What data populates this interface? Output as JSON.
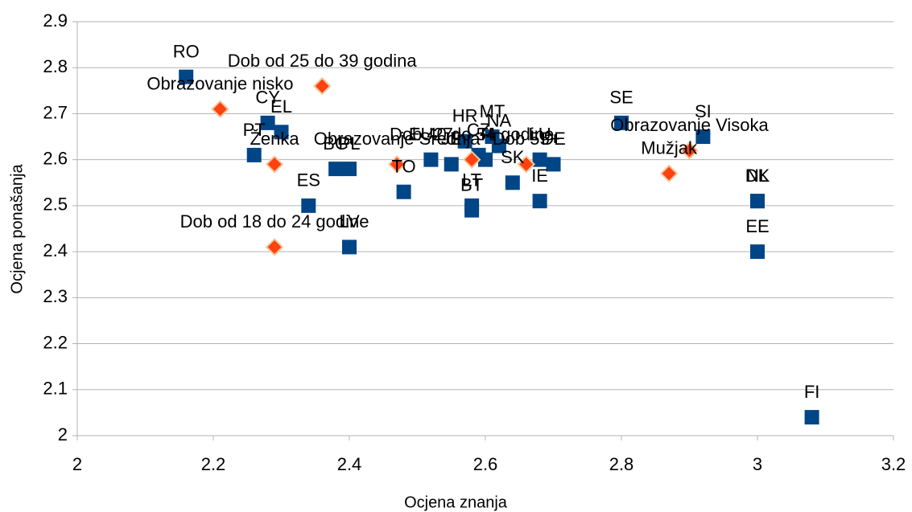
{
  "chart_data": {
    "type": "scatter",
    "xlabel": "Ocjena znanja",
    "ylabel": "Ocjena ponašanja",
    "xlim": [
      2,
      3.2
    ],
    "xticks": [
      2,
      2.2,
      2.4,
      2.6,
      2.8,
      3,
      3.2
    ],
    "ylim": [
      2,
      2.9
    ],
    "yticks": [
      2,
      2.1,
      2.2,
      2.3,
      2.4,
      2.5,
      2.6,
      2.7,
      2.8,
      2.9
    ],
    "grid": true,
    "series": [
      {
        "color": "#004586",
        "marker": "square",
        "labels": [
          "RO",
          "CY",
          "EL",
          "PT",
          "BG",
          "PL",
          "ES",
          "LV",
          "TO",
          "EU27",
          "JE",
          "HR",
          "MT",
          "NA",
          "CZ",
          "TI",
          "LT",
          "BT",
          "SK",
          "LU",
          "DE",
          "IE",
          "SE",
          "SI",
          "NL",
          "DK",
          "EE",
          "FI"
        ],
        "x": [
          2.16,
          2.28,
          2.3,
          2.26,
          2.38,
          2.4,
          2.34,
          2.4,
          2.48,
          2.52,
          2.55,
          2.57,
          2.61,
          2.62,
          2.59,
          2.6,
          2.58,
          2.58,
          2.64,
          2.68,
          2.7,
          2.68,
          2.8,
          2.92,
          3.0,
          3.0,
          3.0,
          3.08
        ],
        "values": [
          2.78,
          2.68,
          2.66,
          2.61,
          2.58,
          2.58,
          2.5,
          2.41,
          2.53,
          2.6,
          2.59,
          2.64,
          2.65,
          2.63,
          2.61,
          2.6,
          2.5,
          2.49,
          2.55,
          2.6,
          2.59,
          2.51,
          2.68,
          2.65,
          2.51,
          2.51,
          2.4,
          2.04
        ]
      },
      {
        "color": "#ff420e",
        "marker": "diamond",
        "labels": [
          "Obrazovanje nisko",
          "Dob od 25 do 39 godina",
          "Ženka",
          "Dob od 18 do 24 godine",
          "Obrazovanje Srednja",
          "Dob 40 do 54 godine",
          "Dob 55+",
          "Mužjak",
          "Obrazovanje Visoka"
        ],
        "x": [
          2.21,
          2.36,
          2.29,
          2.29,
          2.47,
          2.58,
          2.66,
          2.87,
          2.9
        ],
        "values": [
          2.71,
          2.76,
          2.59,
          2.41,
          2.59,
          2.6,
          2.59,
          2.57,
          2.62
        ]
      }
    ]
  }
}
